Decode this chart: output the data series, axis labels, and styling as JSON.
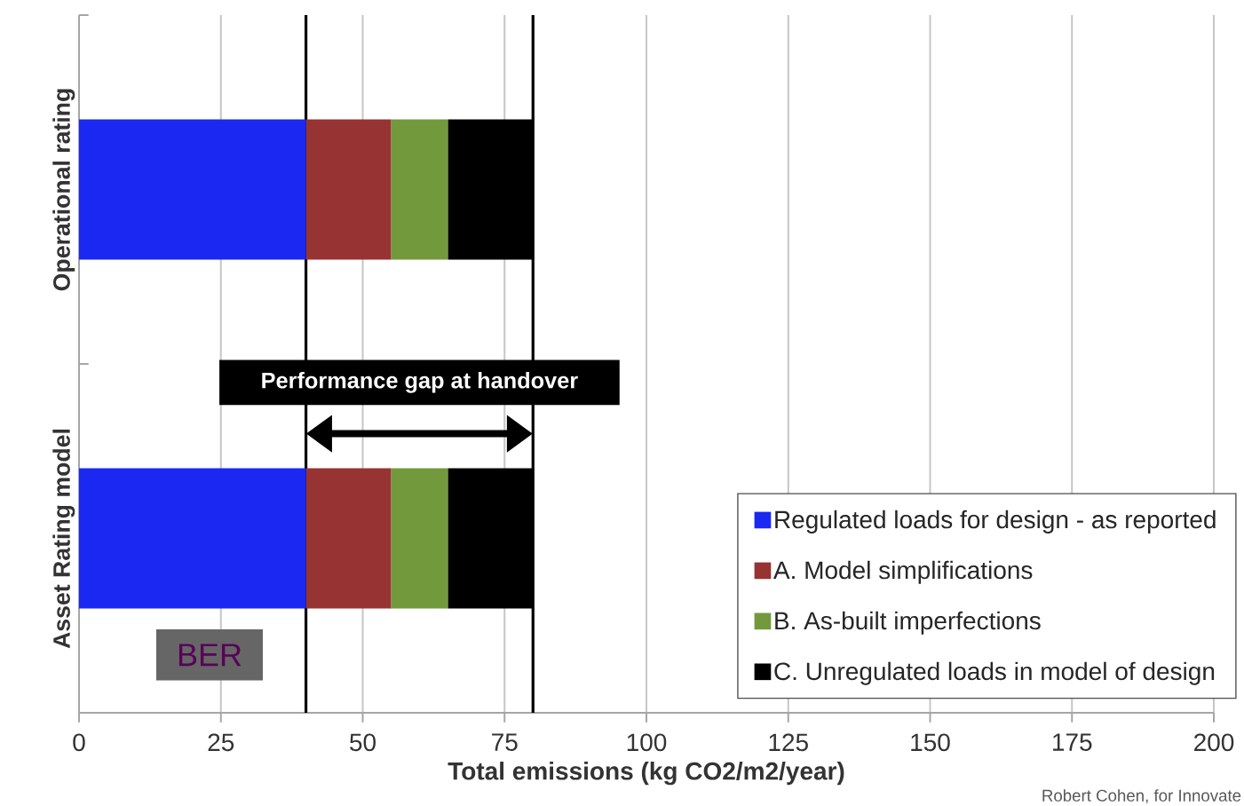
{
  "chart_data": {
    "type": "bar",
    "orientation": "horizontal",
    "stacked": true,
    "xlabel": "Total emissions (kg CO2/m2/year)",
    "categories": [
      "Operational rating",
      "Asset Rating model"
    ],
    "series": [
      {
        "name": "Regulated loads for design - as reported",
        "color": "#1a28f2",
        "values": [
          40,
          40
        ]
      },
      {
        "name": "A. Model simplifications",
        "color": "#973333",
        "values": [
          15,
          15
        ]
      },
      {
        "name": "B. As-built imperfections",
        "color": "#72993c",
        "values": [
          10,
          10
        ]
      },
      {
        "name": "C. Unregulated loads in model of design",
        "color": "#000000",
        "values": [
          15,
          15
        ]
      }
    ],
    "xlim": [
      0,
      200
    ],
    "xticks": [
      0,
      25,
      50,
      75,
      100,
      125,
      150,
      175,
      200
    ],
    "grid": "x",
    "legend": "bottom right",
    "ref_lines": [
      {
        "axis": "x",
        "value": 40,
        "color": "#000000"
      },
      {
        "axis": "x",
        "value": 80,
        "color": "#000000"
      }
    ],
    "annotations": [
      "Performance gap at handover",
      "BER",
      "Robert Cohen, for Innovate"
    ]
  }
}
